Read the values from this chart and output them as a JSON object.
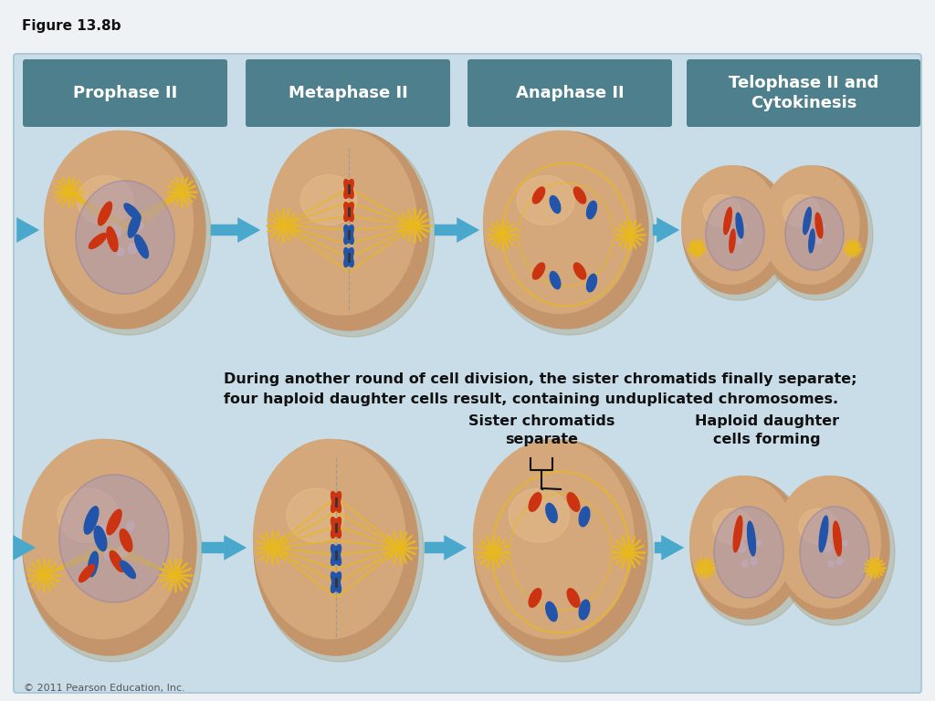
{
  "figure_label": "Figure 13.8b",
  "bg_outer": "#eef2f5",
  "bg_panel": "#c8dde8",
  "header_color": "#4d7f8c",
  "header_labels": [
    "Prophase II",
    "Metaphase II",
    "Anaphase II",
    "Telophase II and\nCytokinesis"
  ],
  "header_text_color": "#ffffff",
  "body_text_line1": "During another round of cell division, the sister chromatids finally separate;",
  "body_text_line2": "four haploid daughter cells result, containing unduplicated chromosomes.",
  "label_sister": "Sister chromatids\nseparate",
  "label_haploid": "Haploid daughter\ncells forming",
  "copyright": "© 2011 Pearson Education, Inc.",
  "cell_outer": "#c4956a",
  "cell_inner": "#d4a87a",
  "cell_highlight": "#e8c090",
  "nucleus_fill": "#a898b8",
  "nucleus_edge": "#9080a8",
  "chrom_red": "#cc3311",
  "chrom_blue": "#2255aa",
  "spindle_color": "#e8b820",
  "arrow_color": "#4aa8cc",
  "arrow_dark": "#1188bb"
}
